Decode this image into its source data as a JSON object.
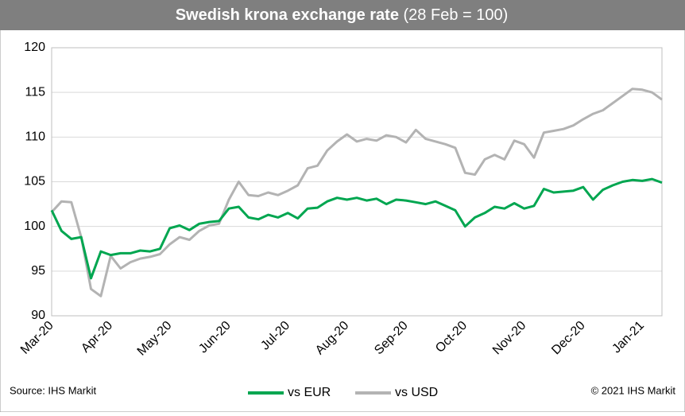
{
  "chart_data": {
    "type": "line",
    "title": "Swedish krona exchange rate",
    "subtitle": "(28 Feb = 100)",
    "source": "Source: IHS Markit",
    "copyright": "© 2021 IHS Markit",
    "categories": [
      "Mar-20",
      null,
      null,
      null,
      null,
      null,
      "Apr-20",
      null,
      null,
      null,
      null,
      null,
      "May-20",
      null,
      null,
      null,
      null,
      null,
      "Jun-20",
      null,
      null,
      null,
      null,
      null,
      "Jul-20",
      null,
      null,
      null,
      null,
      null,
      "Aug-20",
      null,
      null,
      null,
      null,
      null,
      "Sep-20",
      null,
      null,
      null,
      null,
      null,
      "Oct-20",
      null,
      null,
      null,
      null,
      null,
      "Nov-20",
      null,
      null,
      null,
      null,
      null,
      "Dec-20",
      null,
      null,
      null,
      null,
      null,
      "Jan-21",
      null,
      null
    ],
    "series": [
      {
        "name": "vs EUR",
        "color": "#00a650",
        "values": [
          101.8,
          99.5,
          98.6,
          98.8,
          94.2,
          97.2,
          96.8,
          97.0,
          97.0,
          97.3,
          97.2,
          97.5,
          99.8,
          100.1,
          99.6,
          100.3,
          100.5,
          100.6,
          102.0,
          102.2,
          101.0,
          100.8,
          101.3,
          101.0,
          101.5,
          100.9,
          102.0,
          102.1,
          102.8,
          103.2,
          103.0,
          103.2,
          102.9,
          103.1,
          102.5,
          103.0,
          102.9,
          102.7,
          102.5,
          102.8,
          102.3,
          101.8,
          100.0,
          101.0,
          101.5,
          102.2,
          102.0,
          102.6,
          102.0,
          102.3,
          104.2,
          103.8,
          103.9,
          104.0,
          104.4,
          103.0,
          104.1,
          104.6,
          105.0,
          105.2,
          105.1,
          105.3,
          104.9
        ]
      },
      {
        "name": "vs USD",
        "color": "#b3b3b3",
        "values": [
          101.6,
          102.8,
          102.7,
          98.8,
          93.0,
          92.2,
          96.7,
          95.3,
          96.0,
          96.4,
          96.6,
          96.9,
          98.0,
          98.8,
          98.5,
          99.5,
          100.1,
          100.3,
          103.0,
          105.0,
          103.5,
          103.4,
          103.8,
          103.5,
          104.0,
          104.6,
          106.5,
          106.8,
          108.5,
          109.5,
          110.3,
          109.5,
          109.8,
          109.6,
          110.2,
          110.0,
          109.4,
          110.8,
          109.8,
          109.5,
          109.2,
          108.8,
          106.0,
          105.8,
          107.5,
          108.0,
          107.5,
          109.6,
          109.2,
          107.7,
          110.5,
          110.7,
          110.9,
          111.3,
          112.0,
          112.6,
          113.0,
          113.8,
          114.6,
          115.4,
          115.3,
          115.0,
          114.2
        ]
      }
    ],
    "ylim": [
      90,
      120
    ],
    "yticks": [
      90,
      95,
      100,
      105,
      110,
      115,
      120
    ],
    "grid": true
  }
}
